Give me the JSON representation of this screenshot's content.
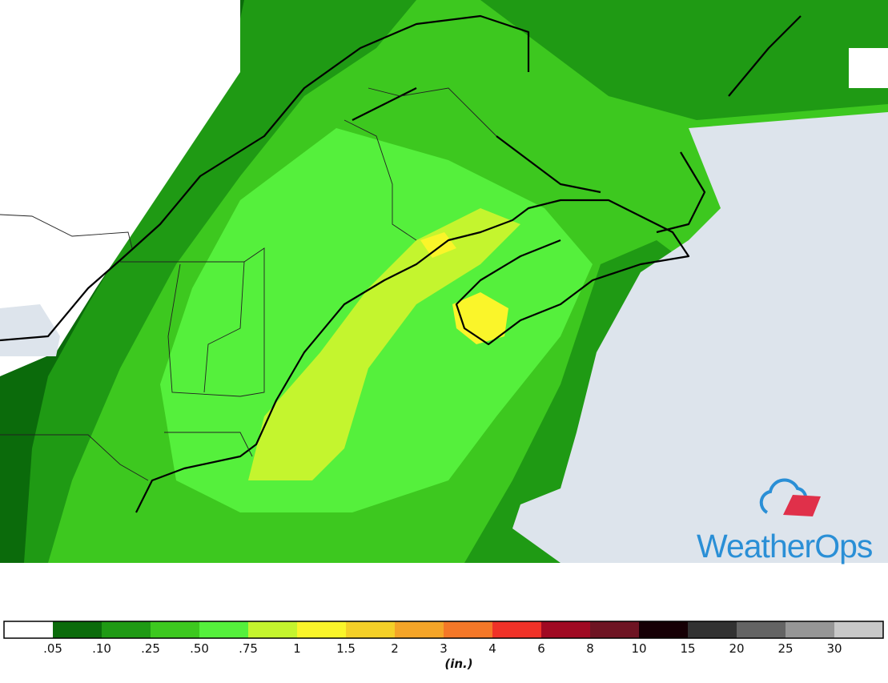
{
  "logo": {
    "text": "WeatherOps"
  },
  "legend": {
    "labels": [
      ".05",
      ".10",
      ".25",
      ".50",
      ".75",
      "1",
      "1.5",
      "2",
      "3",
      "4",
      "6",
      "8",
      "10",
      "15",
      "20",
      "25",
      "30"
    ],
    "colors": [
      "#ffffff",
      "#0b6b0b",
      "#1f9a14",
      "#3dc81f",
      "#55f03c",
      "#c4f52e",
      "#faf52a",
      "#f5d028",
      "#f5a528",
      "#f57828",
      "#f03228",
      "#a00a23",
      "#6e1423",
      "#160005",
      "#323232",
      "#646464",
      "#969696",
      "#c8c8c8"
    ],
    "unit": "(in.)"
  }
}
